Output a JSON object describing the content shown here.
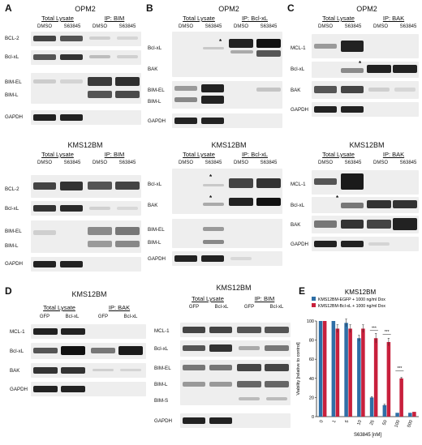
{
  "panels": {
    "A": {
      "label": "A",
      "top": {
        "title": "OPM2",
        "groups": [
          "Total Lysate",
          "IP: BIM"
        ],
        "lanes": [
          "DMSO",
          "S63845",
          "DMSO",
          "S63845"
        ],
        "rows": [
          "BCL-2",
          "Bcl-xL",
          "BIM-EL",
          "BIM-L",
          "GAPDH"
        ]
      },
      "bottom": {
        "title": "KMS12BM",
        "groups": [
          "Total Lysate",
          "IP: BIM"
        ],
        "lanes": [
          "DMSO",
          "S63845",
          "DMSO",
          "S63845"
        ],
        "rows": [
          "BCL-2",
          "Bcl-xL",
          "BIM-EL",
          "BIM-L",
          "GAPDH"
        ]
      }
    },
    "B": {
      "label": "B",
      "top": {
        "title": "OPM2",
        "groups": [
          "Total Lysate",
          "IP: Bcl-xL"
        ],
        "lanes": [
          "DMSO",
          "S63845",
          "DMSO",
          "S63845"
        ],
        "rows": [
          "Bcl-xL",
          "BAK",
          "BIM-EL",
          "BIM-L",
          "GAPDH"
        ],
        "star": "*"
      },
      "bottom": {
        "title": "KMS12BM",
        "groups": [
          "Total Lysate",
          "IP: Bcl-xL"
        ],
        "lanes": [
          "DMSO",
          "S63845",
          "DMSO",
          "S63845"
        ],
        "rows": [
          "Bcl-xL",
          "BAK",
          "BIM-EL",
          "BIM-L",
          "GAPDH"
        ],
        "star": "*"
      }
    },
    "C": {
      "label": "C",
      "top": {
        "title": "OPM2",
        "groups": [
          "Total Lysate",
          "IP: BAK"
        ],
        "lanes": [
          "DMSO",
          "S63845",
          "DMSO",
          "S63845"
        ],
        "rows": [
          "MCL-1",
          "Bcl-xL",
          "BAK",
          "GAPDH"
        ],
        "star": "*"
      },
      "bottom": {
        "title": "KMS12BM",
        "groups": [
          "Total Lysate",
          "IP: BAK"
        ],
        "lanes": [
          "DMSO",
          "S63845",
          "DMSO",
          "S63845"
        ],
        "rows": [
          "MCL-1",
          "Bcl-xL",
          "BAK",
          "GAPDH"
        ],
        "star": "*"
      }
    },
    "D": {
      "label": "D",
      "left": {
        "title": "KMS12BM",
        "groups": [
          "Total Lysate",
          "IP: BAK"
        ],
        "lanes": [
          "GFP",
          "Bcl-xL",
          "GFP",
          "Bcl-xL"
        ],
        "rows": [
          "MCL-1",
          "Bcl-xL",
          "BAK",
          "GAPDH"
        ]
      },
      "right": {
        "title": "KMS12BM",
        "groups": [
          "Total Lysate",
          "IP: BIM"
        ],
        "lanes": [
          "GFP",
          "Bcl-xL",
          "GFP",
          "Bcl-xL"
        ],
        "rows": [
          "MCL-1",
          "Bcl-xL",
          "BIM-EL",
          "BIM-L",
          "BIM-S",
          "GAPDH"
        ]
      }
    },
    "E": {
      "label": "E",
      "title": "KMS12BM"
    }
  },
  "chart_data": {
    "type": "bar",
    "title": "KMS12BM",
    "xlabel": "S63845 [nM]",
    "ylabel": "Viability [relative to control]",
    "categories": [
      "0",
      "1",
      "5",
      "10",
      "25",
      "50",
      "100",
      "500"
    ],
    "ylim": [
      0,
      100
    ],
    "yticks": [
      "0",
      "20",
      "40",
      "60",
      "80",
      "100"
    ],
    "series": [
      {
        "name": "KMS12BM-EGFP + 1000 ng/ml Dox",
        "color": "#2f6fa6",
        "values": [
          100,
          100,
          98,
          82,
          20,
          12,
          4,
          4
        ]
      },
      {
        "name": "KMS12BM-Bcl-xL + 1000 ng/ml Dox",
        "color": "#c8203c",
        "values": [
          100,
          92,
          92,
          92,
          82,
          78,
          40,
          5
        ]
      }
    ],
    "errors": [
      [
        0,
        0,
        4,
        3,
        1,
        1,
        0,
        0
      ],
      [
        0,
        4,
        4,
        4,
        5,
        4,
        1,
        0
      ]
    ],
    "annotations": [
      "***",
      "***",
      "***"
    ],
    "legend_position": "top"
  }
}
